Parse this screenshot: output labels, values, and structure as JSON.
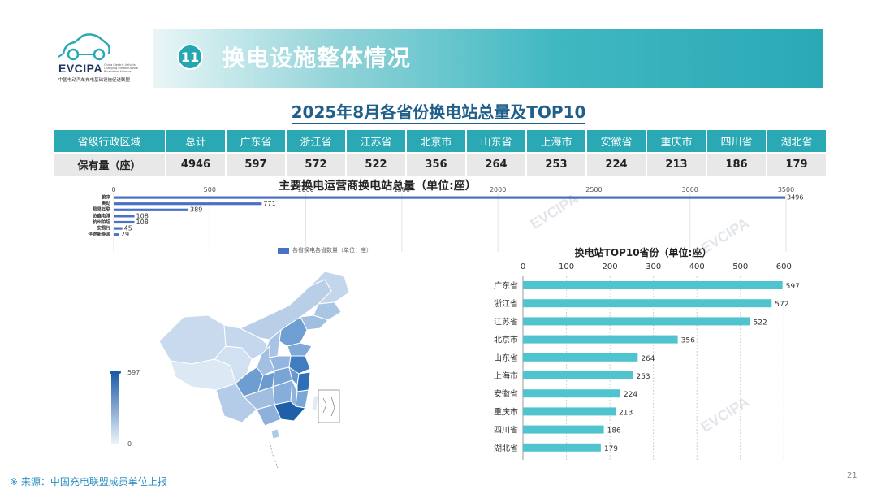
{
  "logo": {
    "brand": "EVCIPA",
    "brand_sub": "China Electric Vehicle Charging Infrastructure Promotion Alliance",
    "brand_cn": "中国电动汽车充电基础设施促进联盟"
  },
  "header": {
    "section_number": "11",
    "title": "换电设施整体情况"
  },
  "main_title": "2025年8月各省份换电站总量及TOP10",
  "table": {
    "header_label": "省级行政区域",
    "row_label": "保有量（座）",
    "columns": [
      "总计",
      "广东省",
      "浙江省",
      "江苏省",
      "北京市",
      "山东省",
      "上海市",
      "安徽省",
      "重庆市",
      "四川省",
      "湖北省"
    ],
    "values": [
      "4946",
      "597",
      "572",
      "522",
      "356",
      "264",
      "253",
      "224",
      "213",
      "186",
      "179"
    ]
  },
  "map": {
    "scale_max": "597",
    "scale_min": "0"
  },
  "chart_data": [
    {
      "type": "bar",
      "orientation": "horizontal",
      "title": "主要换电运营商换电站总量（单位:座）",
      "categories": [
        "蔚来",
        "奥动",
        "易易互联",
        "协鑫电港",
        "杭州伯坦",
        "安易行",
        "伴途新能源"
      ],
      "values": [
        3496,
        771,
        389,
        108,
        108,
        45,
        29
      ],
      "x_ticks": [
        "0",
        "500",
        "1000",
        "1500",
        "2000",
        "2500",
        "3000",
        "3500"
      ],
      "xlim": [
        0,
        3500
      ],
      "legend": "各省换电各省数量（单位：座）",
      "legend_position": "bottom",
      "color": "#4a72c4"
    },
    {
      "type": "bar",
      "orientation": "horizontal",
      "title": "换电站TOP10省份（单位:座）",
      "categories": [
        "广东省",
        "浙江省",
        "江苏省",
        "北京市",
        "山东省",
        "上海市",
        "安徽省",
        "重庆市",
        "四川省",
        "湖北省"
      ],
      "values": [
        597,
        572,
        522,
        356,
        264,
        253,
        224,
        213,
        186,
        179
      ],
      "x_ticks": [
        "0",
        "100",
        "200",
        "300",
        "400",
        "500",
        "600"
      ],
      "xlim": [
        0,
        600
      ],
      "color": "#4fc4cf"
    }
  ],
  "footer": {
    "source": "※ 来源：中国充电联盟成员单位上报",
    "page": "21"
  },
  "watermark": "EVCIPA",
  "colors": {
    "teal": "#2aa9b5",
    "title_blue": "#1f5f8a",
    "source_blue": "#2a8fc0"
  }
}
